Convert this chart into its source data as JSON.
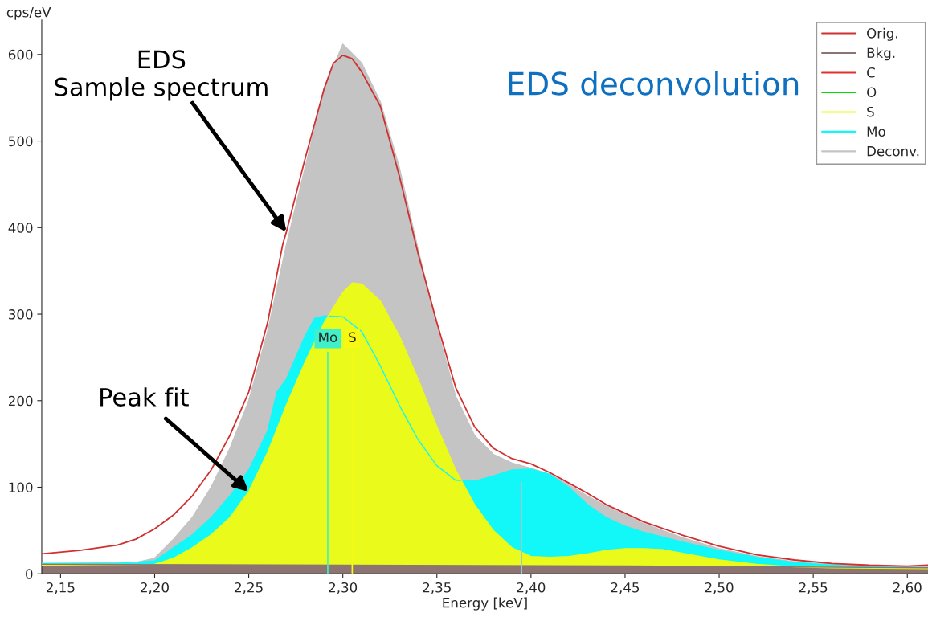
{
  "chart_data": {
    "type": "area",
    "xlabel": "Energy [keV]",
    "ylabel": "cps/eV",
    "xlim": [
      2.14,
      2.611
    ],
    "ylim": [
      0,
      640
    ],
    "xticks": [
      {
        "value": 2.15,
        "label": "2,15"
      },
      {
        "value": 2.2,
        "label": "2,20"
      },
      {
        "value": 2.25,
        "label": "2,25"
      },
      {
        "value": 2.3,
        "label": "2,30"
      },
      {
        "value": 2.35,
        "label": "2,35"
      },
      {
        "value": 2.4,
        "label": "2,40"
      },
      {
        "value": 2.45,
        "label": "2,45"
      },
      {
        "value": 2.5,
        "label": "2,50"
      },
      {
        "value": 2.55,
        "label": "2,55"
      },
      {
        "value": 2.6,
        "label": "2,60"
      }
    ],
    "yticks": [
      0,
      100,
      200,
      300,
      400,
      500,
      600
    ],
    "grid": false,
    "legend": "top right",
    "series": [
      {
        "name": "Orig.",
        "type": "line",
        "color": "#d03030",
        "x": [
          2.14,
          2.16,
          2.18,
          2.19,
          2.2,
          2.21,
          2.22,
          2.23,
          2.24,
          2.25,
          2.26,
          2.268,
          2.27,
          2.28,
          2.29,
          2.295,
          2.3,
          2.305,
          2.31,
          2.32,
          2.33,
          2.34,
          2.35,
          2.36,
          2.37,
          2.38,
          2.39,
          2.4,
          2.41,
          2.42,
          2.43,
          2.44,
          2.45,
          2.46,
          2.48,
          2.5,
          2.52,
          2.54,
          2.56,
          2.58,
          2.6,
          2.611
        ],
        "values": [
          23,
          27,
          33,
          40,
          52,
          68,
          90,
          120,
          160,
          210,
          290,
          380,
          395,
          480,
          560,
          590,
          599,
          595,
          580,
          540,
          460,
          370,
          290,
          215,
          170,
          145,
          133,
          127,
          117,
          105,
          93,
          80,
          70,
          60,
          45,
          32,
          22,
          16,
          12,
          10,
          9,
          10
        ]
      },
      {
        "name": "Bkg.",
        "color": "#8b7472",
        "x": [
          2.14,
          2.3,
          2.45,
          2.611
        ],
        "values": [
          11,
          10,
          9,
          7
        ]
      },
      {
        "name": "C",
        "type": "line",
        "color": "#e03030"
      },
      {
        "name": "O",
        "type": "line",
        "color": "#00e000"
      },
      {
        "name": "S",
        "color": "#eafa1a",
        "x": [
          2.14,
          2.2,
          2.21,
          2.22,
          2.23,
          2.24,
          2.25,
          2.26,
          2.27,
          2.28,
          2.29,
          2.3,
          2.305,
          2.31,
          2.32,
          2.33,
          2.34,
          2.35,
          2.36,
          2.37,
          2.38,
          2.39,
          2.4,
          2.41,
          2.42,
          2.43,
          2.44,
          2.45,
          2.46,
          2.47,
          2.48,
          2.5,
          2.52,
          2.54,
          2.56,
          2.611
        ],
        "values": [
          10,
          11,
          18,
          30,
          45,
          65,
          95,
          140,
          195,
          245,
          290,
          325,
          336,
          335,
          315,
          275,
          225,
          170,
          120,
          80,
          50,
          30,
          20,
          19,
          20,
          23,
          27,
          29,
          29,
          28,
          24,
          16,
          11,
          8,
          7,
          6
        ]
      },
      {
        "name": "Mo",
        "color": "#12f8f8",
        "x": [
          2.14,
          2.18,
          2.2,
          2.21,
          2.22,
          2.23,
          2.24,
          2.25,
          2.26,
          2.265,
          2.27,
          2.28,
          2.285,
          2.29,
          2.3,
          2.31,
          2.32,
          2.33,
          2.34,
          2.35,
          2.36,
          2.37,
          2.38,
          2.39,
          2.4,
          2.41,
          2.42,
          2.43,
          2.44,
          2.45,
          2.46,
          2.48,
          2.5,
          2.52,
          2.54,
          2.56,
          2.58,
          2.611
        ],
        "values": [
          12,
          12,
          15,
          30,
          45,
          65,
          90,
          120,
          165,
          210,
          225,
          275,
          295,
          298,
          297,
          280,
          240,
          195,
          155,
          125,
          108,
          107,
          113,
          120,
          121,
          115,
          100,
          80,
          65,
          55,
          48,
          37,
          27,
          19,
          13,
          10,
          8,
          7
        ]
      },
      {
        "name": "Deconv.",
        "color": "#c4c4c4",
        "x": [
          2.14,
          2.19,
          2.2,
          2.21,
          2.22,
          2.23,
          2.24,
          2.25,
          2.26,
          2.27,
          2.28,
          2.29,
          2.3,
          2.31,
          2.32,
          2.33,
          2.34,
          2.35,
          2.36,
          2.37,
          2.38,
          2.39,
          2.4,
          2.41,
          2.42,
          2.43,
          2.44,
          2.45,
          2.46,
          2.48,
          2.5,
          2.52,
          2.54,
          2.56,
          2.58,
          2.611
        ],
        "values": [
          12,
          13,
          18,
          40,
          65,
          100,
          145,
          200,
          280,
          380,
          470,
          560,
          612,
          590,
          545,
          470,
          375,
          285,
          205,
          160,
          138,
          128,
          122,
          115,
          103,
          90,
          78,
          68,
          58,
          42,
          29,
          20,
          14,
          11,
          9,
          8
        ]
      }
    ],
    "ref_lines": [
      {
        "axis": "x",
        "value": 2.292,
        "label": "Mo",
        "color": "#40f0c8"
      },
      {
        "axis": "x",
        "value": 2.305,
        "label": "S",
        "color": "#f8f810"
      },
      {
        "axis": "x",
        "value": 2.395,
        "color": "#a0c8d0"
      }
    ],
    "annotations": [
      {
        "text": "EDS\nSample spectrum",
        "x": 2.27,
        "y": 395
      },
      {
        "text": "Peak fit",
        "x": 2.25,
        "y": 95
      },
      "EDS deconvolution"
    ]
  }
}
